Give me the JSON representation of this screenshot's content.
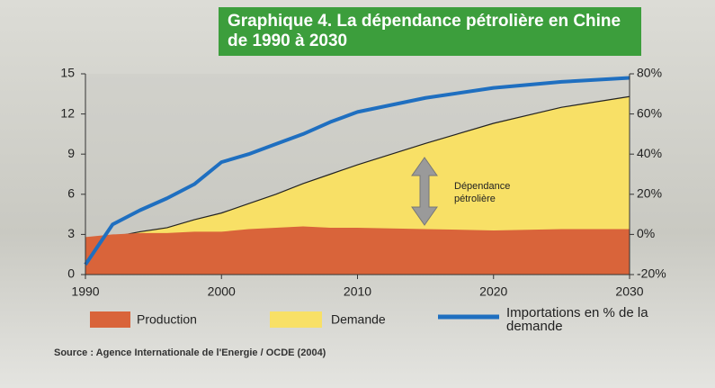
{
  "chart_data": {
    "type": "area",
    "title": "Graphique 4. La dépendance pétrolière en Chine de 1990 à 2030",
    "annotation": "Dépendance pétrolière",
    "source": "Source : Agence Internationale de l'Energie / OCDE (2004)",
    "x": [
      1990,
      1992,
      1994,
      1996,
      1998,
      2000,
      2002,
      2004,
      2006,
      2008,
      2010,
      2015,
      2020,
      2025,
      2030
    ],
    "series": [
      {
        "name": "Demande",
        "color": "#f8e066",
        "values": [
          2.3,
          2.8,
          3.2,
          3.5,
          4.1,
          4.6,
          5.3,
          6.0,
          6.8,
          7.5,
          8.2,
          9.8,
          11.3,
          12.5,
          13.3
        ]
      },
      {
        "name": "Production",
        "color": "#d9643a",
        "values": [
          2.8,
          3.0,
          3.1,
          3.1,
          3.2,
          3.2,
          3.4,
          3.5,
          3.6,
          3.5,
          3.5,
          3.4,
          3.3,
          3.4,
          3.4
        ]
      },
      {
        "name": "Importations en % de la demande",
        "color": "#1f6fc0",
        "axis": "y2",
        "values": [
          -15,
          5,
          12,
          18,
          25,
          36,
          40,
          45,
          50,
          56,
          61,
          68,
          73,
          76,
          78
        ]
      }
    ],
    "xlim": [
      1990,
      2030
    ],
    "xticks": [
      1990,
      2000,
      2010,
      2020,
      2030
    ],
    "ylim": [
      0,
      15
    ],
    "yticks": [
      0,
      3,
      6,
      9,
      12,
      15
    ],
    "y2lim": [
      -20,
      80
    ],
    "y2ticks": [
      {
        "value": -20,
        "label": "-20%"
      },
      {
        "value": 0,
        "label": "0%"
      },
      {
        "value": 20,
        "label": "20%"
      },
      {
        "value": 40,
        "label": "40%"
      },
      {
        "value": 60,
        "label": "60%"
      },
      {
        "value": 80,
        "label": "80%"
      }
    ]
  }
}
